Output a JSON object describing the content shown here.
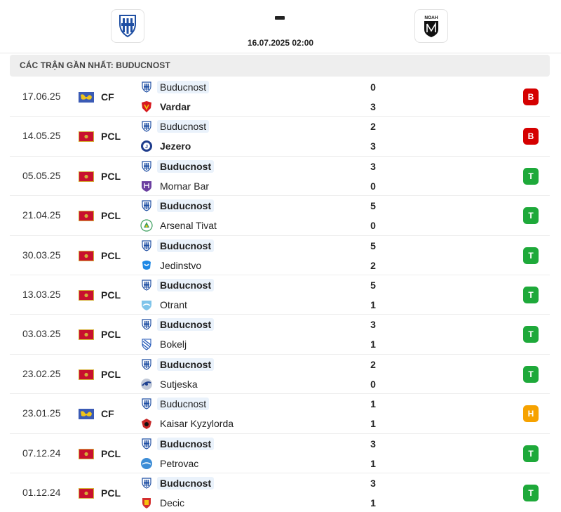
{
  "header": {
    "home_logo": "buducnost-crest-icon",
    "away_logo": "noah-crest-icon",
    "away_logo_text": "NOAH",
    "score_separator": "-",
    "match_time": "16.07.2025 02:00"
  },
  "section_title": "CÁC TRẬN GẦN NHẤT: BUDUCNOST",
  "colors": {
    "loss": "#d50000",
    "win": "#1ea93a",
    "draw": "#f6a200",
    "highlight": "#eaf2fb"
  },
  "matches": [
    {
      "date": "17.06.25",
      "comp": "CF",
      "flag": "cf",
      "home": "Buducnost",
      "home_logo": "buducnost",
      "away": "Vardar",
      "away_logo": "vardar",
      "home_score": "0",
      "away_score": "3",
      "result": "B",
      "result_type": "loss",
      "winner": "away"
    },
    {
      "date": "14.05.25",
      "comp": "PCL",
      "flag": "me",
      "home": "Buducnost",
      "home_logo": "buducnost",
      "away": "Jezero",
      "away_logo": "jezero",
      "home_score": "2",
      "away_score": "3",
      "result": "B",
      "result_type": "loss",
      "winner": "away"
    },
    {
      "date": "05.05.25",
      "comp": "PCL",
      "flag": "me",
      "home": "Buducnost",
      "home_logo": "buducnost",
      "away": "Mornar Bar",
      "away_logo": "mornar",
      "home_score": "3",
      "away_score": "0",
      "result": "T",
      "result_type": "win",
      "winner": "home"
    },
    {
      "date": "21.04.25",
      "comp": "PCL",
      "flag": "me",
      "home": "Buducnost",
      "home_logo": "buducnost",
      "away": "Arsenal Tivat",
      "away_logo": "arsenal",
      "home_score": "5",
      "away_score": "0",
      "result": "T",
      "result_type": "win",
      "winner": "home"
    },
    {
      "date": "30.03.25",
      "comp": "PCL",
      "flag": "me",
      "home": "Buducnost",
      "home_logo": "buducnost",
      "away": "Jedinstvo",
      "away_logo": "jedinstvo",
      "home_score": "5",
      "away_score": "2",
      "result": "T",
      "result_type": "win",
      "winner": "home"
    },
    {
      "date": "13.03.25",
      "comp": "PCL",
      "flag": "me",
      "home": "Buducnost",
      "home_logo": "buducnost",
      "away": "Otrant",
      "away_logo": "otrant",
      "home_score": "5",
      "away_score": "1",
      "result": "T",
      "result_type": "win",
      "winner": "home"
    },
    {
      "date": "03.03.25",
      "comp": "PCL",
      "flag": "me",
      "home": "Buducnost",
      "home_logo": "buducnost",
      "away": "Bokelj",
      "away_logo": "bokelj",
      "home_score": "3",
      "away_score": "1",
      "result": "T",
      "result_type": "win",
      "winner": "home"
    },
    {
      "date": "23.02.25",
      "comp": "PCL",
      "flag": "me",
      "home": "Buducnost",
      "home_logo": "buducnost",
      "away": "Sutjeska",
      "away_logo": "sutjeska",
      "home_score": "2",
      "away_score": "0",
      "result": "T",
      "result_type": "win",
      "winner": "home"
    },
    {
      "date": "23.01.25",
      "comp": "CF",
      "flag": "cf",
      "home": "Buducnost",
      "home_logo": "buducnost",
      "away": "Kaisar Kyzylorda",
      "away_logo": "kaisar",
      "home_score": "1",
      "away_score": "1",
      "result": "H",
      "result_type": "draw",
      "winner": "none"
    },
    {
      "date": "07.12.24",
      "comp": "PCL",
      "flag": "me",
      "home": "Buducnost",
      "home_logo": "buducnost",
      "away": "Petrovac",
      "away_logo": "petrovac",
      "home_score": "3",
      "away_score": "1",
      "result": "T",
      "result_type": "win",
      "winner": "home"
    },
    {
      "date": "01.12.24",
      "comp": "PCL",
      "flag": "me",
      "home": "Buducnost",
      "home_logo": "buducnost",
      "away": "Decic",
      "away_logo": "decic",
      "home_score": "3",
      "away_score": "1",
      "result": "T",
      "result_type": "win",
      "winner": "home"
    }
  ]
}
